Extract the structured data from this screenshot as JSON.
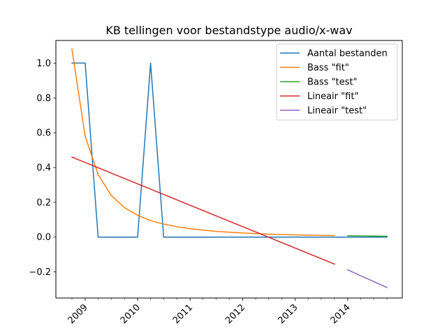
{
  "chart_data": {
    "type": "line",
    "title": "KB tellingen voor bestandstype audio/x-wav",
    "xlabel": "",
    "ylabel": "",
    "x_axis": {
      "kind": "date",
      "range": [
        "2008-10-01",
        "2014-10-01"
      ],
      "major_ticks": [
        {
          "date": "2009-01-01",
          "label": "2009"
        },
        {
          "date": "2010-01-01",
          "label": "2010"
        },
        {
          "date": "2011-01-01",
          "label": "2011"
        },
        {
          "date": "2012-01-01",
          "label": "2012"
        },
        {
          "date": "2013-01-01",
          "label": "2013"
        },
        {
          "date": "2014-01-01",
          "label": "2014"
        }
      ],
      "minor_tick_interval_months": 3
    },
    "y_axis": {
      "range": [
        -0.35,
        1.13
      ],
      "ticks": [
        {
          "value": -0.2,
          "label": "−0.2"
        },
        {
          "value": 0.0,
          "label": "0.0"
        },
        {
          "value": 0.2,
          "label": "0.2"
        },
        {
          "value": 0.4,
          "label": "0.4"
        },
        {
          "value": 0.6,
          "label": "0.6"
        },
        {
          "value": 0.8,
          "label": "0.8"
        },
        {
          "value": 1.0,
          "label": "1.0"
        }
      ]
    },
    "grid": false,
    "legend_position": "top-right",
    "series": [
      {
        "name": "Aantal bestanden",
        "color": "#1f77b4",
        "points": [
          [
            "2008-10-01",
            1.0
          ],
          [
            "2009-01-01",
            1.0
          ],
          [
            "2009-04-01",
            0.0
          ],
          [
            "2009-07-01",
            0.0
          ],
          [
            "2009-10-01",
            0.0
          ],
          [
            "2010-01-01",
            0.0
          ],
          [
            "2010-04-01",
            1.0
          ],
          [
            "2010-07-01",
            0.0
          ],
          [
            "2010-10-01",
            0.0
          ],
          [
            "2011-01-01",
            0.0
          ],
          [
            "2011-04-01",
            0.0
          ],
          [
            "2011-07-01",
            0.0
          ],
          [
            "2011-10-01",
            0.0
          ],
          [
            "2012-01-01",
            0.0
          ],
          [
            "2012-04-01",
            0.0
          ],
          [
            "2012-07-01",
            0.0
          ],
          [
            "2012-10-01",
            0.0
          ],
          [
            "2013-01-01",
            0.0
          ],
          [
            "2013-04-01",
            0.0
          ],
          [
            "2013-07-01",
            0.0
          ],
          [
            "2013-10-01",
            0.0
          ],
          [
            "2014-01-01",
            0.0
          ],
          [
            "2014-04-01",
            0.0
          ],
          [
            "2014-07-01",
            0.0
          ],
          [
            "2014-10-01",
            0.0
          ]
        ]
      },
      {
        "name": "Bass \"fit\"",
        "color": "#ff7f0e",
        "points": [
          [
            "2008-10-01",
            1.08
          ],
          [
            "2009-01-01",
            0.58
          ],
          [
            "2009-04-01",
            0.36
          ],
          [
            "2009-07-01",
            0.24
          ],
          [
            "2009-10-01",
            0.17
          ],
          [
            "2010-01-01",
            0.125
          ],
          [
            "2010-04-01",
            0.095
          ],
          [
            "2010-07-01",
            0.075
          ],
          [
            "2010-10-01",
            0.06
          ],
          [
            "2011-01-01",
            0.048
          ],
          [
            "2011-04-01",
            0.04
          ],
          [
            "2011-07-01",
            0.033
          ],
          [
            "2011-10-01",
            0.028
          ],
          [
            "2012-01-01",
            0.024
          ],
          [
            "2012-04-01",
            0.02
          ],
          [
            "2012-07-01",
            0.017
          ],
          [
            "2012-10-01",
            0.015
          ],
          [
            "2013-01-01",
            0.013
          ],
          [
            "2013-04-01",
            0.011
          ],
          [
            "2013-07-01",
            0.01
          ],
          [
            "2013-10-01",
            0.009
          ]
        ]
      },
      {
        "name": "Bass \"test\"",
        "color": "#2ca02c",
        "points": [
          [
            "2014-01-01",
            0.008
          ],
          [
            "2014-04-01",
            0.007
          ],
          [
            "2014-07-01",
            0.006
          ],
          [
            "2014-10-01",
            0.005
          ]
        ]
      },
      {
        "name": "Lineair \"fit\"",
        "color": "#d62728",
        "points": [
          [
            "2008-10-01",
            0.46
          ],
          [
            "2013-10-01",
            -0.155
          ]
        ]
      },
      {
        "name": "Lineair \"test\"",
        "color": "#9467bd",
        "points": [
          [
            "2014-01-01",
            -0.188
          ],
          [
            "2014-10-01",
            -0.29
          ]
        ]
      }
    ]
  }
}
